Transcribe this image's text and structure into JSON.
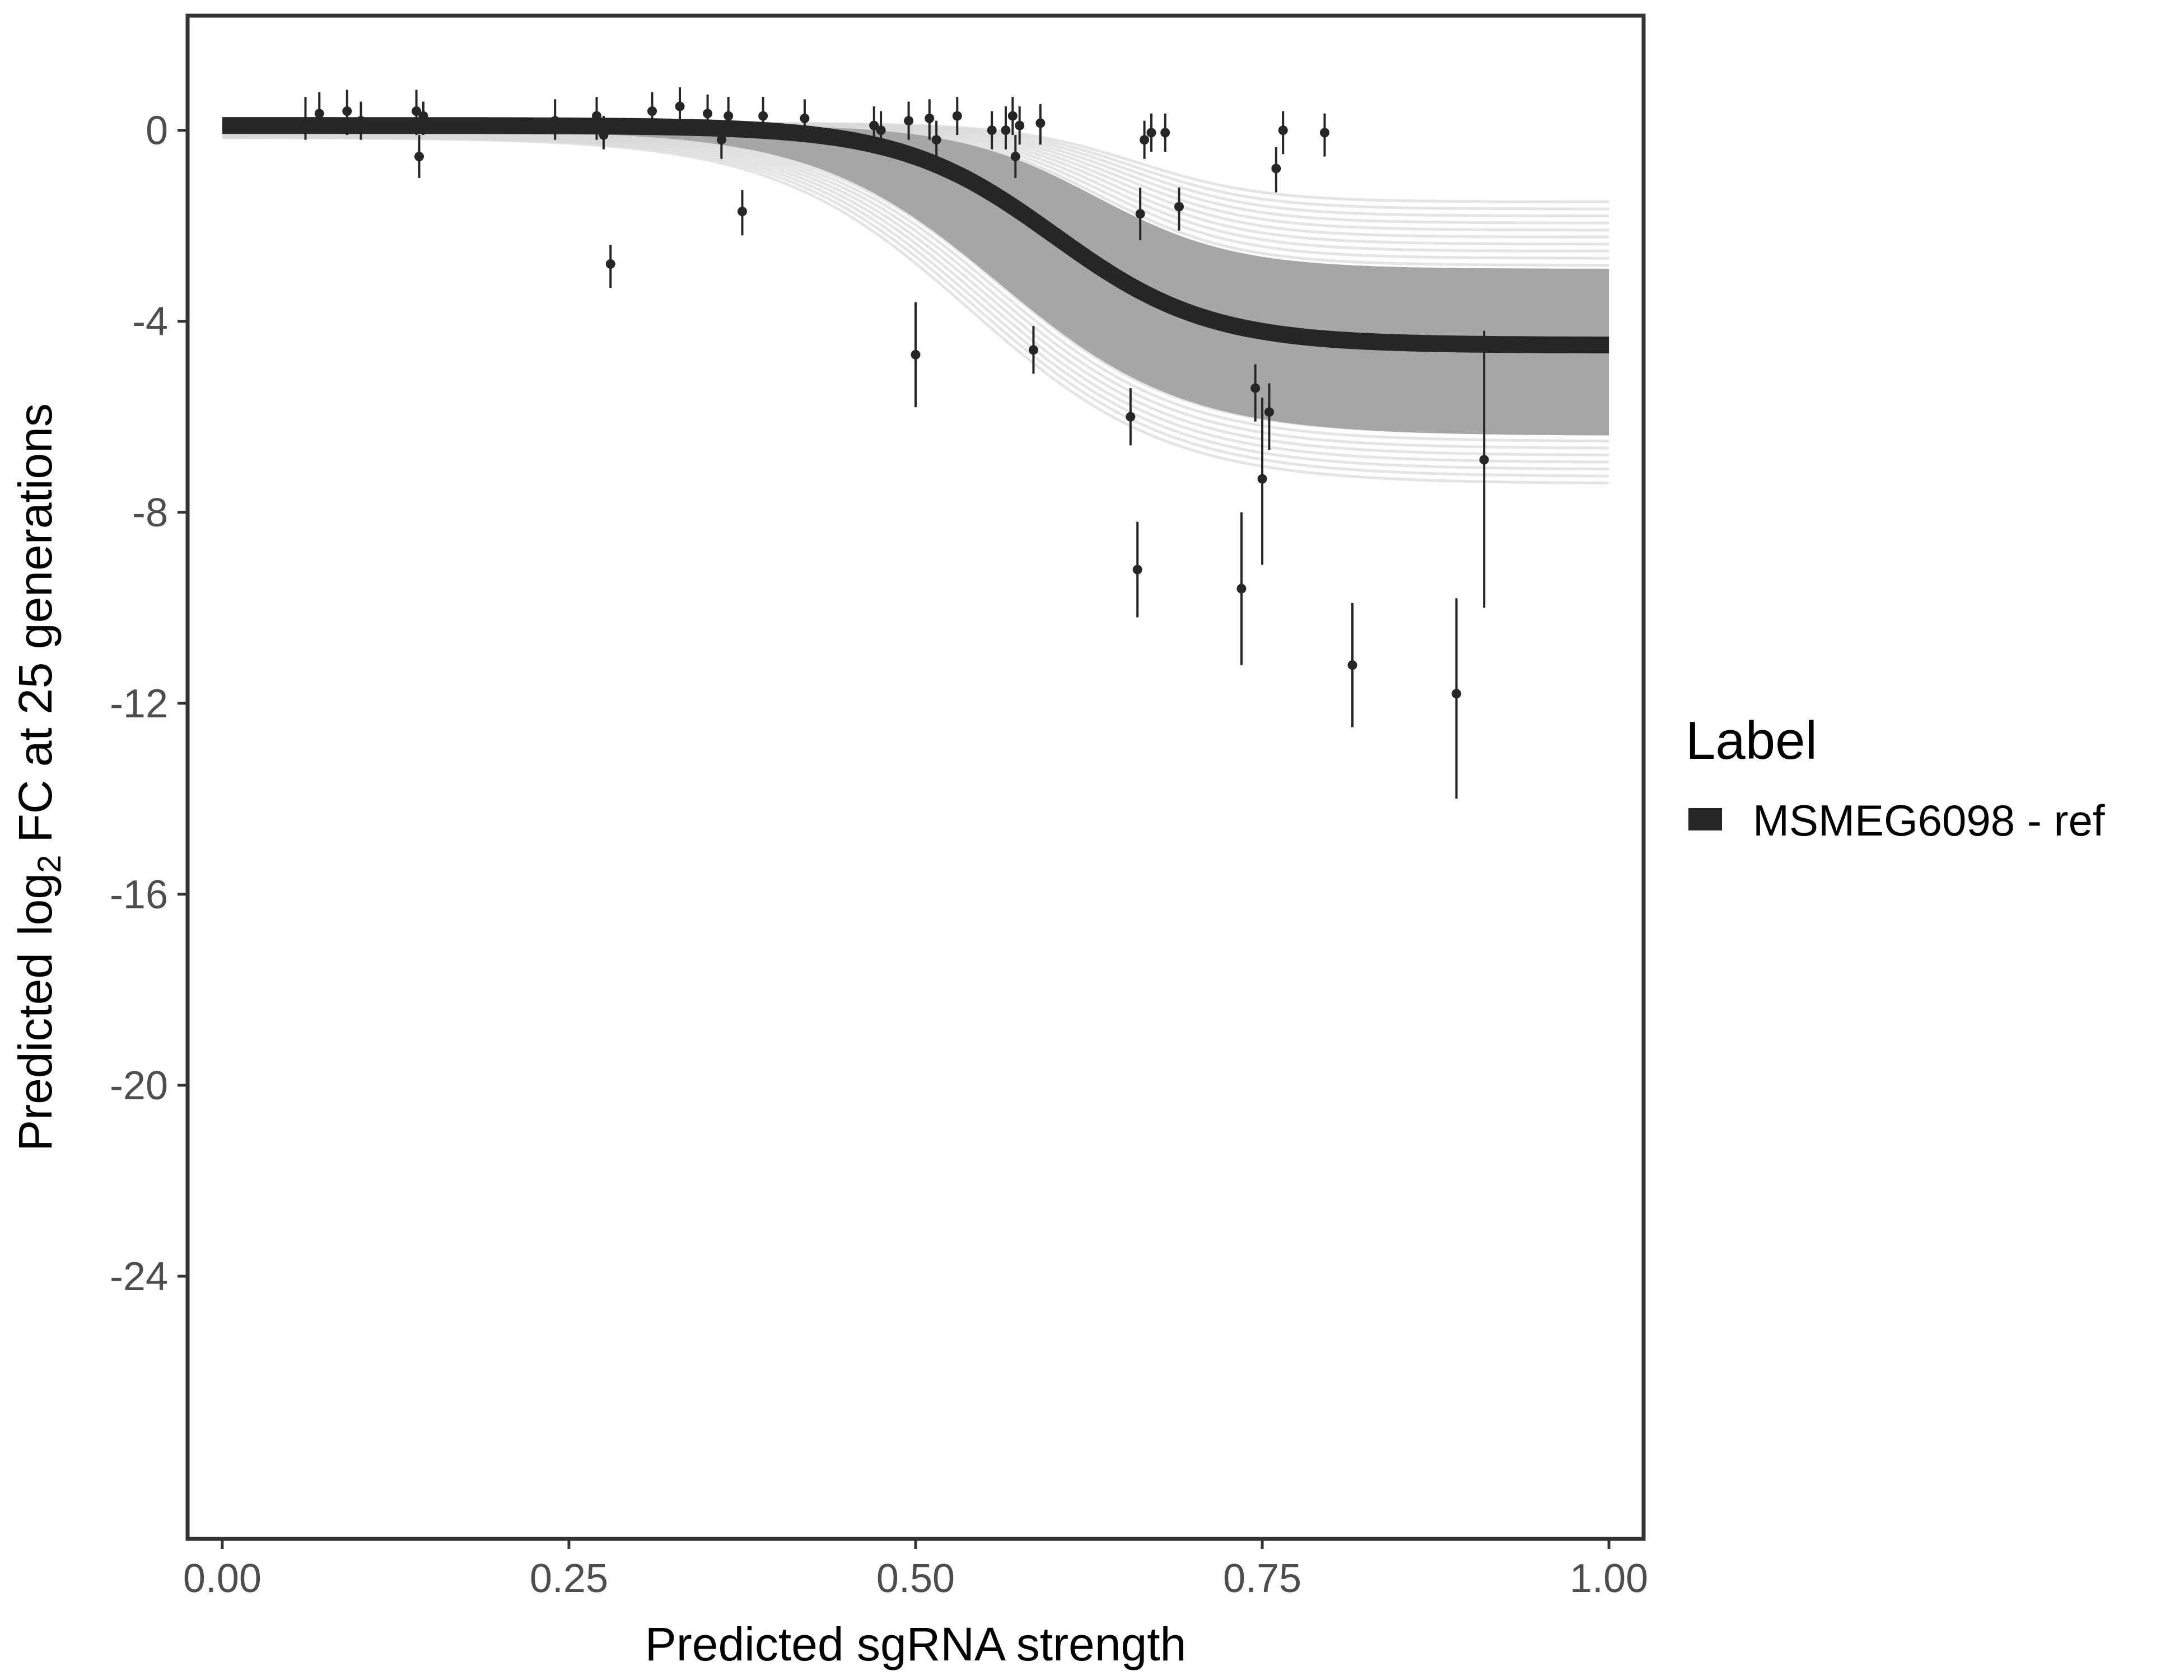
{
  "chart_data": {
    "type": "scatter",
    "xlabel": "Predicted sgRNA strength",
    "ylabel_prefix": "Predicted",
    "ylabel_log": "log",
    "ylabel_sub": "2",
    "ylabel_suffix": "FC at 25 generations",
    "xlim": [
      -0.025,
      1.025
    ],
    "ylim": [
      -29.5,
      2.4
    ],
    "x_ticks": [
      0,
      0.25,
      0.5,
      0.75,
      1
    ],
    "x_tick_labels": [
      "0.00",
      "0.25",
      "0.50",
      "0.75",
      "1.00"
    ],
    "y_ticks": [
      0,
      -4,
      -8,
      -12,
      -16,
      -20,
      -24
    ],
    "y_tick_labels": [
      "0",
      "-4",
      "-8",
      "-12",
      "-16",
      "-20",
      "-24"
    ],
    "grid": false,
    "legend": {
      "title": "Label",
      "position": "right",
      "entries": [
        {
          "label": "MSMEG6098 - ref",
          "color": "#262626"
        }
      ]
    },
    "colors": {
      "fit_line": "#262626",
      "posterior_band": "#a6a6a6",
      "posterior_draw": "#d9d9d9",
      "points": "#262626",
      "panel_border": "#333333"
    },
    "fit_curve": {
      "model": "logistic",
      "upper": 0.1,
      "lower": -4.5,
      "midpoint": 0.6,
      "slope": 18,
      "x_range": [
        0,
        1
      ]
    },
    "posterior_band": {
      "upper_curve": {
        "upper": 0.15,
        "lower": -1.5,
        "midpoint": 0.66,
        "slope": 22
      },
      "lower_curve": {
        "upper": -0.15,
        "lower": -7.4,
        "midpoint": 0.54,
        "slope": 14
      }
    },
    "series": [
      {
        "name": "MSMEG6098 - ref",
        "points": [
          {
            "x": 0.06,
            "y": 0.15,
            "lo": -0.2,
            "hi": 0.7
          },
          {
            "x": 0.07,
            "y": 0.35,
            "lo": 0.0,
            "hi": 0.8
          },
          {
            "x": 0.09,
            "y": 0.4,
            "lo": -0.1,
            "hi": 0.85
          },
          {
            "x": 0.1,
            "y": 0.2,
            "lo": -0.2,
            "hi": 0.6
          },
          {
            "x": 0.14,
            "y": 0.4,
            "lo": -0.1,
            "hi": 0.85
          },
          {
            "x": 0.142,
            "y": -0.55,
            "lo": -1.0,
            "hi": -0.1
          },
          {
            "x": 0.145,
            "y": 0.3,
            "lo": -0.1,
            "hi": 0.6
          },
          {
            "x": 0.24,
            "y": 0.2,
            "lo": -0.2,
            "hi": 0.65
          },
          {
            "x": 0.27,
            "y": 0.3,
            "lo": -0.2,
            "hi": 0.7
          },
          {
            "x": 0.275,
            "y": -0.1,
            "lo": -0.4,
            "hi": 0.3
          },
          {
            "x": 0.28,
            "y": -2.8,
            "lo": -3.3,
            "hi": -2.4
          },
          {
            "x": 0.31,
            "y": 0.4,
            "lo": 0.0,
            "hi": 0.8
          },
          {
            "x": 0.33,
            "y": 0.5,
            "lo": 0.1,
            "hi": 0.9
          },
          {
            "x": 0.35,
            "y": 0.35,
            "lo": -0.1,
            "hi": 0.75
          },
          {
            "x": 0.36,
            "y": -0.2,
            "lo": -0.6,
            "hi": 0.2
          },
          {
            "x": 0.365,
            "y": 0.3,
            "lo": -0.1,
            "hi": 0.7
          },
          {
            "x": 0.375,
            "y": -1.7,
            "lo": -2.2,
            "hi": -1.25
          },
          {
            "x": 0.39,
            "y": 0.3,
            "lo": -0.1,
            "hi": 0.7
          },
          {
            "x": 0.42,
            "y": 0.25,
            "lo": -0.2,
            "hi": 0.65
          },
          {
            "x": 0.47,
            "y": 0.1,
            "lo": -0.4,
            "hi": 0.5
          },
          {
            "x": 0.475,
            "y": 0.0,
            "lo": -0.4,
            "hi": 0.4
          },
          {
            "x": 0.495,
            "y": 0.2,
            "lo": -0.2,
            "hi": 0.6
          },
          {
            "x": 0.5,
            "y": -4.7,
            "lo": -5.8,
            "hi": -3.6
          },
          {
            "x": 0.51,
            "y": 0.25,
            "lo": -0.2,
            "hi": 0.65
          },
          {
            "x": 0.515,
            "y": -0.2,
            "lo": -0.6,
            "hi": 0.2
          },
          {
            "x": 0.53,
            "y": 0.3,
            "lo": -0.1,
            "hi": 0.7
          },
          {
            "x": 0.555,
            "y": 0.0,
            "lo": -0.4,
            "hi": 0.4
          },
          {
            "x": 0.565,
            "y": 0.0,
            "lo": -0.4,
            "hi": 0.5
          },
          {
            "x": 0.57,
            "y": 0.3,
            "lo": -0.1,
            "hi": 0.7
          },
          {
            "x": 0.572,
            "y": -0.55,
            "lo": -1.0,
            "hi": -0.1
          },
          {
            "x": 0.575,
            "y": 0.1,
            "lo": -0.3,
            "hi": 0.5
          },
          {
            "x": 0.585,
            "y": -4.6,
            "lo": -5.1,
            "hi": -4.1
          },
          {
            "x": 0.59,
            "y": 0.15,
            "lo": -0.3,
            "hi": 0.55
          },
          {
            "x": 0.655,
            "y": -6.0,
            "lo": -6.6,
            "hi": -5.4
          },
          {
            "x": 0.66,
            "y": -9.2,
            "lo": -10.2,
            "hi": -8.2
          },
          {
            "x": 0.662,
            "y": -1.75,
            "lo": -2.3,
            "hi": -1.2
          },
          {
            "x": 0.665,
            "y": -0.2,
            "lo": -0.6,
            "hi": 0.2
          },
          {
            "x": 0.67,
            "y": -0.05,
            "lo": -0.45,
            "hi": 0.35
          },
          {
            "x": 0.68,
            "y": -0.05,
            "lo": -0.45,
            "hi": 0.35
          },
          {
            "x": 0.69,
            "y": -1.6,
            "lo": -2.1,
            "hi": -1.2
          },
          {
            "x": 0.735,
            "y": -9.6,
            "lo": -11.2,
            "hi": -8.0
          },
          {
            "x": 0.745,
            "y": -5.4,
            "lo": -6.1,
            "hi": -4.9
          },
          {
            "x": 0.75,
            "y": -7.3,
            "lo": -9.1,
            "hi": -5.6
          },
          {
            "x": 0.755,
            "y": -5.9,
            "lo": -6.7,
            "hi": -5.3
          },
          {
            "x": 0.76,
            "y": -0.8,
            "lo": -1.3,
            "hi": -0.35
          },
          {
            "x": 0.765,
            "y": 0.0,
            "lo": -0.5,
            "hi": 0.4
          },
          {
            "x": 0.795,
            "y": -0.05,
            "lo": -0.55,
            "hi": 0.35
          },
          {
            "x": 0.815,
            "y": -11.2,
            "lo": -12.5,
            "hi": -9.9
          },
          {
            "x": 0.89,
            "y": -11.8,
            "lo": -14.0,
            "hi": -9.8
          },
          {
            "x": 0.91,
            "y": -6.9,
            "lo": -10.0,
            "hi": -4.2
          }
        ]
      }
    ]
  }
}
